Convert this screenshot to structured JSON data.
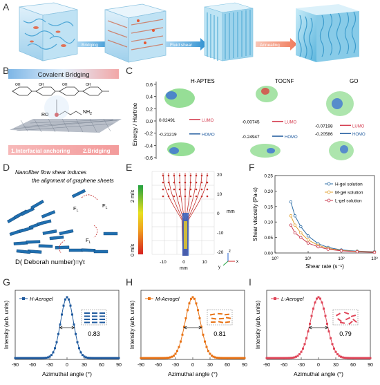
{
  "panel_labels": {
    "A": "A",
    "B": "B",
    "C": "C",
    "D": "D",
    "E": "E",
    "F": "F",
    "G": "G",
    "H": "H",
    "I": "I"
  },
  "panel_a": {
    "arrows": [
      "Bridging",
      "Fluid shear",
      "Annealing"
    ]
  },
  "panel_b": {
    "title": "Covalent Bridging",
    "step1": "1.Interfacial anchoring",
    "step2": "2.Bridging",
    "ro": "RO",
    "nh2": "NH",
    "nh2_sub": "2"
  },
  "panel_c": {
    "ylabel": "Energy / Hartree",
    "yticks": [
      "0.6",
      "0.4",
      "0.2",
      "0.0",
      "-0.2",
      "-0.4",
      "-0.6"
    ],
    "molecules": [
      {
        "name": "H-APTES",
        "lumo": "0.02491",
        "homo": "-0.21219"
      },
      {
        "name": "TOCNF",
        "lumo": "-0.00745",
        "homo": "-0.24947"
      },
      {
        "name": "GO",
        "lumo": "-0.07198",
        "homo": "-0.20586"
      }
    ],
    "lumo_label": "LUMO",
    "homo_label": "HOMO"
  },
  "panel_d": {
    "line1": "Nanofiber flow shear induces",
    "line2": "the alignment of graphene sheets",
    "force": "F",
    "force_sub": "L",
    "formula": "D( Deborah number)=γ̇τ"
  },
  "panel_e": {
    "colorbar_top": "2 m/s",
    "colorbar_bottom": "0 m/s",
    "zticks": [
      "20",
      "10",
      "0",
      "-10",
      "-20"
    ],
    "zunit": "mm",
    "xticks": [
      "-10",
      "0",
      "10"
    ],
    "xunit": "mm",
    "axes": {
      "z": "z",
      "y": "y",
      "x": "x"
    }
  },
  "chart_data": [
    {
      "type": "line",
      "panel": "F",
      "xlabel": "Shear rate (s⁻¹)",
      "ylabel": "Shear viscosity (Pa·s)",
      "xscale": "log",
      "xlim": [
        1,
        1000
      ],
      "ylim": [
        0,
        0.25
      ],
      "yticks": [
        "0.00",
        "0.05",
        "0.10",
        "0.15",
        "0.20",
        "0.25"
      ],
      "xticks": [
        "10⁰",
        "10¹",
        "10²",
        "10³"
      ],
      "legend_position": "top-right",
      "series": [
        {
          "name": "H-gel solution",
          "color": "#2c6ca5",
          "x": [
            3,
            4,
            6,
            10,
            20,
            40,
            100,
            300,
            1000
          ],
          "values": [
            0.165,
            0.12,
            0.085,
            0.055,
            0.03,
            0.018,
            0.01,
            0.006,
            0.004
          ]
        },
        {
          "name": "M-gel solution",
          "color": "#e0a030",
          "x": [
            3,
            4,
            6,
            10,
            20,
            40,
            100,
            300,
            1000
          ],
          "values": [
            0.12,
            0.09,
            0.065,
            0.042,
            0.025,
            0.015,
            0.008,
            0.005,
            0.003
          ]
        },
        {
          "name": "L-gel solution",
          "color": "#c8384c",
          "x": [
            3,
            4,
            6,
            10,
            20,
            40,
            100,
            300,
            1000
          ],
          "values": [
            0.09,
            0.065,
            0.05,
            0.032,
            0.02,
            0.012,
            0.007,
            0.004,
            0.002
          ]
        }
      ]
    },
    {
      "type": "scatter",
      "panel": "G",
      "series_name": "H-Aerogel",
      "color": "#1f5a9e",
      "xlabel": "Azimuthal angle (°)",
      "ylabel": "Intensity (arb. units)",
      "xlim": [
        -90,
        90
      ],
      "xticks": [
        "-90",
        "-60",
        "-30",
        "0",
        "30",
        "60",
        "90"
      ],
      "fwhm_label": "0.83",
      "peak_center": 0,
      "peak_sigma": 11
    },
    {
      "type": "scatter",
      "panel": "H",
      "series_name": "M-Aerogel",
      "color": "#e87316",
      "xlabel": "Azimuthal angle (°)",
      "ylabel": "Intensity (arb. units)",
      "xlim": [
        -90,
        90
      ],
      "xticks": [
        "-90",
        "-60",
        "-30",
        "0",
        "30",
        "60",
        "90"
      ],
      "fwhm_label": "0.81",
      "peak_center": 0,
      "peak_sigma": 13
    },
    {
      "type": "scatter",
      "panel": "I",
      "series_name": "L-Aerogel",
      "color": "#e0475a",
      "xlabel": "Azimuthal angle (°)",
      "ylabel": "Intensity (arb. units)",
      "xlim": [
        -90,
        90
      ],
      "xticks": [
        "-90",
        "-60",
        "-30",
        "0",
        "30",
        "60",
        "90"
      ],
      "fwhm_label": "0.79",
      "peak_center": 0,
      "peak_sigma": 14
    }
  ]
}
